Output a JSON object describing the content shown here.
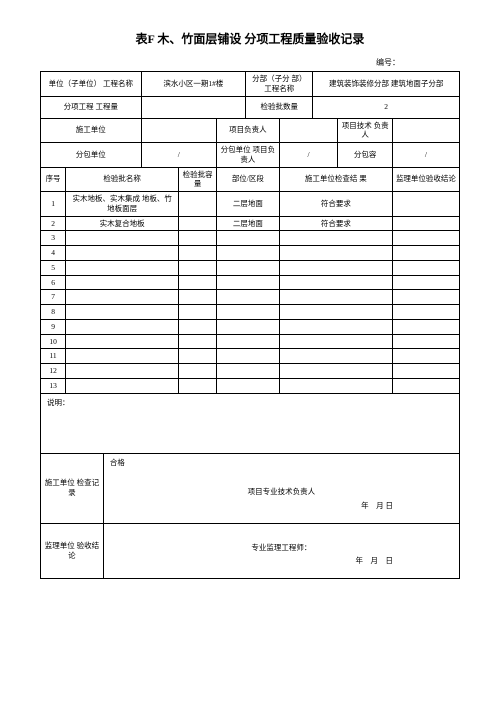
{
  "title": "表F 木、竹面层铺设 分项工程质量验收记录",
  "doc_number_label": "编号：",
  "header": {
    "unit_label": "单位（子单位） 工程名称",
    "unit_value": "滨水小区一期1#楼",
    "section_label": "分部（子分 部）工程名称",
    "section_value": "建筑装饰装修分部 建筑地面子分部",
    "qty_label": "分项工程 工程量",
    "qty_value": "",
    "batch_count_label": "检验批数量",
    "batch_count_value": "2",
    "construct_unit_label": "施工单位",
    "pm_label": "项目负责人",
    "tech_lead_label": "项目技术 负责人",
    "subcontract_unit_label": "分包单位",
    "subcontract_unit_value": "/",
    "subcontract_pm_label": "分包单位 项目负责人",
    "subcontract_pm_value": "/",
    "subcontract_content_label": "分包容",
    "subcontract_content_value": "/"
  },
  "columns": {
    "seq": "序号",
    "batch_name": "检验批名称",
    "batch_capacity": "检验批容量",
    "part": "部位/区段",
    "construct_result": "施工单位检查结 果",
    "supervisor_result": "监理单位验收结论"
  },
  "rows": [
    {
      "seq": "1",
      "name": "实木地板、实木集成 地板、竹地板面层",
      "cap": "",
      "part": "二层地面",
      "r1": "符合要求",
      "r2": ""
    },
    {
      "seq": "2",
      "name": "实木复合地板",
      "cap": "",
      "part": "二层地面",
      "r1": "符合要求",
      "r2": ""
    },
    {
      "seq": "3",
      "name": "",
      "cap": "",
      "part": "",
      "r1": "",
      "r2": ""
    },
    {
      "seq": "4",
      "name": "",
      "cap": "",
      "part": "",
      "r1": "",
      "r2": ""
    },
    {
      "seq": "5",
      "name": "",
      "cap": "",
      "part": "",
      "r1": "",
      "r2": ""
    },
    {
      "seq": "6",
      "name": "",
      "cap": "",
      "part": "",
      "r1": "",
      "r2": ""
    },
    {
      "seq": "7",
      "name": "",
      "cap": "",
      "part": "",
      "r1": "",
      "r2": ""
    },
    {
      "seq": "8",
      "name": "",
      "cap": "",
      "part": "",
      "r1": "",
      "r2": ""
    },
    {
      "seq": "9",
      "name": "",
      "cap": "",
      "part": "",
      "r1": "",
      "r2": ""
    },
    {
      "seq": "10",
      "name": "",
      "cap": "",
      "part": "",
      "r1": "",
      "r2": ""
    },
    {
      "seq": "11",
      "name": "",
      "cap": "",
      "part": "",
      "r1": "",
      "r2": ""
    },
    {
      "seq": "12",
      "name": "",
      "cap": "",
      "part": "",
      "r1": "",
      "r2": ""
    },
    {
      "seq": "13",
      "name": "",
      "cap": "",
      "part": "",
      "r1": "",
      "r2": ""
    }
  ],
  "desc_label": "说明：",
  "check_record": {
    "label": "施工单位 检查记录",
    "pass": "合格",
    "sign_label": "项目专业技术负责人",
    "date_label": "年　月 日"
  },
  "audit": {
    "label": "监理单位 验收结论",
    "sign_label": "专业监理工程师：",
    "date_label": "年　月　日"
  }
}
